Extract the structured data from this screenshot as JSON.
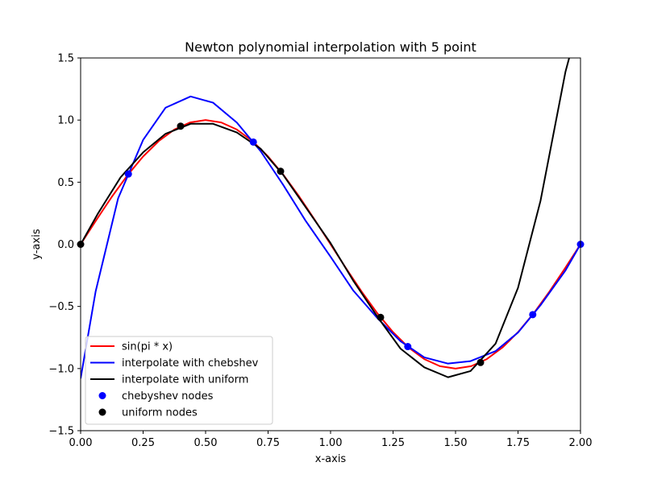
{
  "chart_data": {
    "type": "line",
    "title": "Newton polynomial interpolation with 5 point",
    "xlabel": "x-axis",
    "ylabel": "y-axis",
    "xlim": [
      0.0,
      2.0
    ],
    "ylim": [
      -1.5,
      1.5
    ],
    "x_ticks": [
      0.0,
      0.25,
      0.5,
      0.75,
      1.0,
      1.25,
      1.5,
      1.75,
      2.0
    ],
    "x_tick_labels": [
      "0.00",
      "0.25",
      "0.50",
      "0.75",
      "1.00",
      "1.25",
      "1.50",
      "1.75",
      "2.00"
    ],
    "y_ticks": [
      -1.5,
      -1.0,
      -0.5,
      0.0,
      0.5,
      1.0,
      1.5
    ],
    "y_tick_labels": [
      "−1.5",
      "−1.0",
      "−0.5",
      "0.0",
      "0.5",
      "1.0",
      "1.5"
    ],
    "legend_position": "lower-left",
    "series": [
      {
        "name": "sin(pi * x)",
        "kind": "line",
        "color": "#ff0000",
        "x": [
          0.0,
          0.0625,
          0.125,
          0.1875,
          0.25,
          0.3125,
          0.375,
          0.4375,
          0.5,
          0.5625,
          0.625,
          0.6875,
          0.75,
          0.8125,
          0.875,
          0.9375,
          1.0,
          1.0625,
          1.125,
          1.1875,
          1.25,
          1.3125,
          1.375,
          1.4375,
          1.5,
          1.5625,
          1.625,
          1.6875,
          1.75,
          1.8125,
          1.875,
          1.9375,
          2.0
        ],
        "y": [
          0.0,
          0.195,
          0.383,
          0.556,
          0.707,
          0.831,
          0.924,
          0.981,
          1.0,
          0.981,
          0.924,
          0.831,
          0.707,
          0.556,
          0.383,
          0.195,
          0.0,
          -0.195,
          -0.383,
          -0.556,
          -0.707,
          -0.831,
          -0.924,
          -0.981,
          -1.0,
          -0.981,
          -0.924,
          -0.831,
          -0.707,
          -0.556,
          -0.383,
          -0.195,
          0.0
        ]
      },
      {
        "name": "interpolate with chebshev",
        "kind": "line",
        "color": "#0000ff",
        "x": [
          0.0,
          0.06,
          0.15,
          0.25,
          0.34,
          0.44,
          0.53,
          0.625,
          0.72,
          0.81,
          0.9,
          1.0,
          1.09,
          1.19,
          1.28,
          1.375,
          1.47,
          1.56,
          1.66,
          1.75,
          1.84,
          1.94,
          2.0
        ],
        "y": [
          -1.08,
          -0.38,
          0.37,
          0.84,
          1.1,
          1.19,
          1.14,
          0.98,
          0.75,
          0.48,
          0.19,
          -0.1,
          -0.37,
          -0.6,
          -0.78,
          -0.91,
          -0.96,
          -0.94,
          -0.86,
          -0.71,
          -0.49,
          -0.21,
          0.0
        ]
      },
      {
        "name": "interpolate with uniform",
        "kind": "line",
        "color": "#000000",
        "x": [
          0.0,
          0.07,
          0.16,
          0.25,
          0.34,
          0.44,
          0.53,
          0.625,
          0.72,
          0.81,
          0.9,
          1.0,
          1.09,
          1.19,
          1.28,
          1.375,
          1.47,
          1.56,
          1.66,
          1.75,
          1.84,
          1.94,
          1.96
        ],
        "y": [
          0.0,
          0.25,
          0.54,
          0.74,
          0.89,
          0.97,
          0.97,
          0.9,
          0.77,
          0.56,
          0.3,
          0.01,
          -0.29,
          -0.59,
          -0.84,
          -0.99,
          -1.07,
          -1.02,
          -0.8,
          -0.35,
          0.35,
          1.39,
          1.54
        ]
      },
      {
        "name": "chebyshev nodes",
        "kind": "points",
        "color": "#0000ff",
        "x": [
          0.191,
          0.691,
          1.309,
          1.809,
          2.0
        ],
        "y": [
          0.566,
          0.823,
          -0.823,
          -0.566,
          0.0
        ]
      },
      {
        "name": "uniform nodes",
        "kind": "points",
        "color": "#000000",
        "x": [
          0.0,
          0.4,
          0.8,
          1.2,
          1.6
        ],
        "y": [
          0.0,
          0.951,
          0.588,
          -0.588,
          -0.951
        ]
      }
    ]
  }
}
